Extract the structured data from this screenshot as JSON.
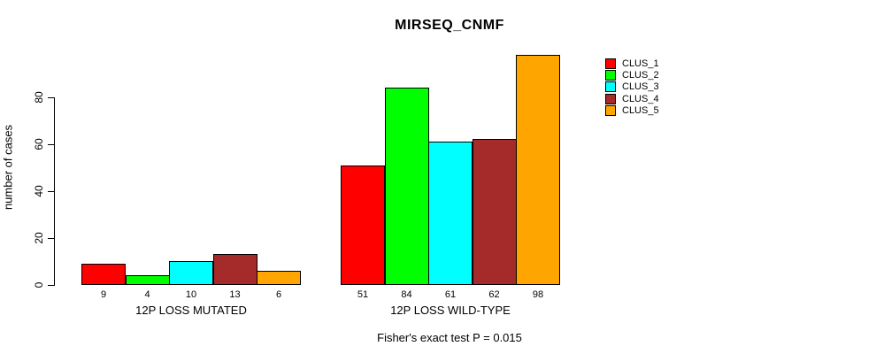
{
  "chart_data": {
    "type": "bar",
    "title": "MIRSEQ_CNMF",
    "xlabel": "",
    "ylabel": "number of cases",
    "categories": [
      "12P LOSS MUTATED",
      "12P LOSS WILD-TYPE"
    ],
    "series": [
      {
        "name": "CLUS_1",
        "color": "#FF0000",
        "values": [
          9,
          51
        ]
      },
      {
        "name": "CLUS_2",
        "color": "#00FF00",
        "values": [
          4,
          84
        ]
      },
      {
        "name": "CLUS_3",
        "color": "#00FFFF",
        "values": [
          10,
          61
        ]
      },
      {
        "name": "CLUS_4",
        "color": "#A52A2A",
        "values": [
          13,
          62
        ]
      },
      {
        "name": "CLUS_5",
        "color": "#FFA500",
        "values": [
          6,
          98
        ]
      }
    ],
    "yticks": [
      0,
      20,
      40,
      60,
      80
    ],
    "ylim": [
      0,
      100
    ],
    "grid": false,
    "legend_position": "right",
    "bar_value_labels_shown": true,
    "annotation": "Fisher's exact test P = 0.015"
  },
  "colors": {
    "background": "#FFFFFF",
    "axis": "#000000",
    "bar_border": "#000000",
    "text": "#000000"
  }
}
